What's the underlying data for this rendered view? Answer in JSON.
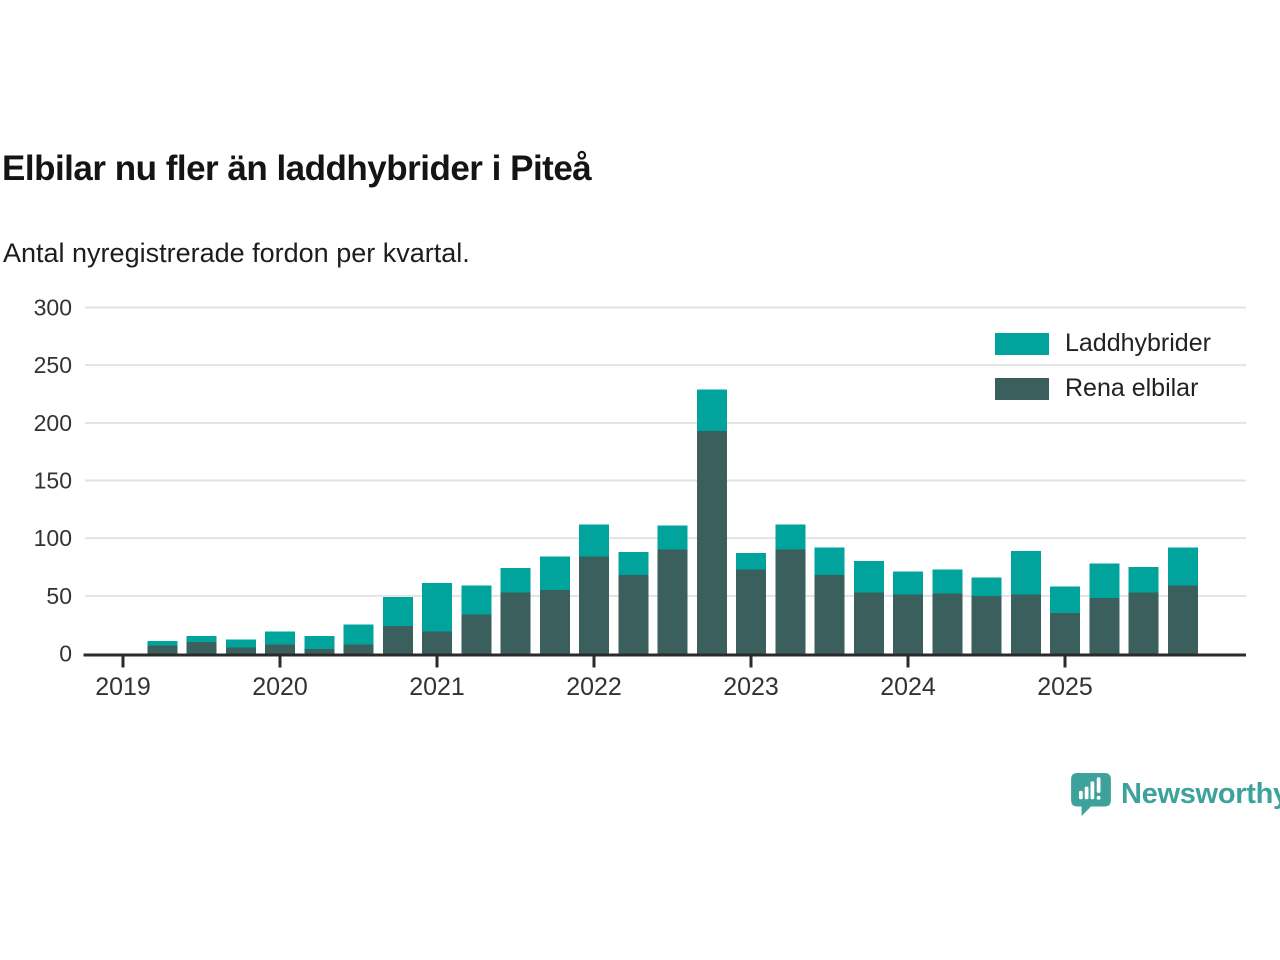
{
  "header": {
    "title": "Elbilar nu fler än laddhybrider i Piteå",
    "subtitle": "Antal nyregistrerade fordon per kvartal."
  },
  "brand": {
    "logo_text": "Newsworthy",
    "logo_color": "#3ea29c"
  },
  "chart_data": {
    "type": "bar",
    "stacked": true,
    "title": "Elbilar nu fler än laddhybrider i Piteå",
    "subtitle": "Antal nyregistrerade fordon per kvartal.",
    "ylim": [
      0,
      300
    ],
    "yticks": [
      0,
      50,
      100,
      150,
      200,
      250,
      300
    ],
    "grid": true,
    "legend_position": "top-right",
    "x_year_labels": [
      "2019",
      "2020",
      "2021",
      "2022",
      "2023",
      "2024",
      "2025"
    ],
    "quarters": [
      "2019-Q2",
      "2019-Q3",
      "2019-Q4",
      "2020-Q1",
      "2020-Q2",
      "2020-Q3",
      "2020-Q4",
      "2021-Q1",
      "2021-Q2",
      "2021-Q3",
      "2021-Q4",
      "2022-Q1",
      "2022-Q2",
      "2022-Q3",
      "2022-Q4",
      "2023-Q1",
      "2023-Q2",
      "2023-Q3",
      "2023-Q4",
      "2024-Q1",
      "2024-Q2",
      "2024-Q3",
      "2024-Q4",
      "2025-Q1",
      "2025-Q2",
      "2025-Q3",
      "2025-Q4"
    ],
    "series": [
      {
        "name": "Laddhybrider",
        "color": "#00a49c",
        "values": [
          4,
          5,
          7,
          11,
          11,
          17,
          25,
          42,
          25,
          21,
          29,
          28,
          20,
          21,
          36,
          14,
          22,
          24,
          27,
          20,
          21,
          16,
          38,
          23,
          30,
          22,
          33
        ]
      },
      {
        "name": "Rena elbilar",
        "color": "#3a5f5c",
        "values": [
          7,
          10,
          5,
          8,
          4,
          8,
          24,
          19,
          34,
          53,
          55,
          84,
          68,
          90,
          193,
          73,
          90,
          68,
          53,
          51,
          52,
          50,
          51,
          35,
          48,
          53,
          59
        ]
      }
    ],
    "axis_color": "#2b2b2b",
    "grid_color": "#e3e3e3",
    "tick_label_color": "#333333"
  }
}
